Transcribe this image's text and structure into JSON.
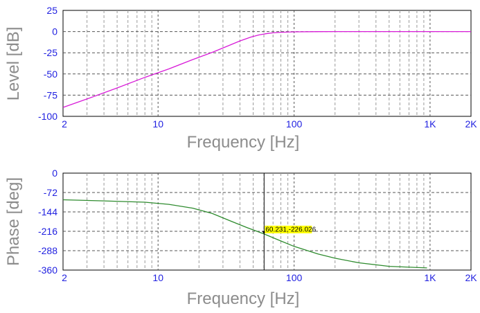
{
  "chart_data": [
    {
      "type": "line",
      "xscale": "log",
      "xlim": [
        2,
        2000
      ],
      "ylim": [
        -100,
        25
      ],
      "xlabel": "Frequency [Hz]",
      "ylabel": "Level [dB]",
      "x_ticks": [
        {
          "value": 2,
          "label": "2"
        },
        {
          "value": 10,
          "label": "10"
        },
        {
          "value": 100,
          "label": "100"
        },
        {
          "value": 1000,
          "label": "1K"
        },
        {
          "value": 2000,
          "label": "2K"
        }
      ],
      "y_ticks": [
        {
          "value": 25,
          "label": "25"
        },
        {
          "value": 0,
          "label": "0"
        },
        {
          "value": -25,
          "label": "-25"
        },
        {
          "value": -50,
          "label": "-50"
        },
        {
          "value": -75,
          "label": "-75"
        },
        {
          "value": -100,
          "label": "-100"
        }
      ],
      "grid": true,
      "series": [
        {
          "color": "#d81bd8",
          "x": [
            2,
            3,
            5,
            8,
            12,
            18,
            25,
            32,
            40,
            48,
            55,
            62,
            70,
            80,
            100,
            150,
            200,
            500,
            1000,
            2000
          ],
          "y": [
            -89.5,
            -79.5,
            -66.5,
            -54,
            -44,
            -33,
            -24.5,
            -17.5,
            -11,
            -6.5,
            -4,
            -2.5,
            -1.5,
            -0.8,
            -0.3,
            -0.1,
            0,
            0,
            0,
            0
          ]
        }
      ]
    },
    {
      "type": "line",
      "xscale": "log",
      "xlim": [
        2,
        2000
      ],
      "ylim": [
        -360,
        0
      ],
      "xlabel": "Frequency [Hz]",
      "ylabel": "Phase [deg]",
      "x_ticks": [
        {
          "value": 2,
          "label": "2"
        },
        {
          "value": 10,
          "label": "10"
        },
        {
          "value": 100,
          "label": "100"
        },
        {
          "value": 1000,
          "label": "1K"
        },
        {
          "value": 2000,
          "label": "2K"
        }
      ],
      "y_ticks": [
        {
          "value": 0,
          "label": "0"
        },
        {
          "value": -72,
          "label": "-72"
        },
        {
          "value": -144,
          "label": "-144"
        },
        {
          "value": -216,
          "label": "-216"
        },
        {
          "value": -288,
          "label": "-288"
        },
        {
          "value": -360,
          "label": "-360"
        }
      ],
      "grid": true,
      "series": [
        {
          "color": "#2e8b2e",
          "x": [
            2,
            4,
            8,
            12,
            18,
            25,
            35,
            45,
            60.231,
            80,
            100,
            150,
            200,
            300,
            500,
            950
          ],
          "y": [
            -99,
            -103,
            -108,
            -116,
            -130,
            -150,
            -180,
            -202,
            -226.026,
            -252,
            -272,
            -300,
            -316,
            -333,
            -346,
            -352
          ]
        }
      ],
      "cursor": {
        "x": 60.231,
        "y": -226.026,
        "label": "60.231,-226.026",
        "color": "#ffff00"
      }
    }
  ]
}
